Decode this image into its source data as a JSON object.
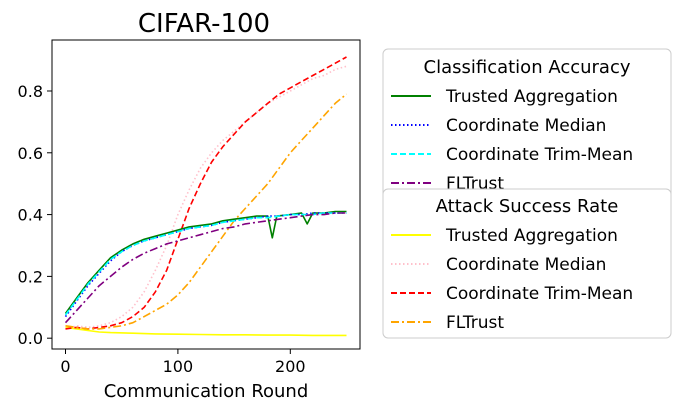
{
  "chart_data": {
    "type": "line",
    "title": "CIFAR-100",
    "xlabel": "Communication Round",
    "ylabel": "",
    "xlim": [
      -12,
      262
    ],
    "ylim": [
      -0.035,
      0.965
    ],
    "xticks": [
      0,
      100,
      200
    ],
    "xtick_labels": [
      "0",
      "100",
      "200"
    ],
    "yticks": [
      0.0,
      0.2,
      0.4,
      0.6,
      0.8
    ],
    "ytick_labels": [
      "0.0",
      "0.2",
      "0.4",
      "0.6",
      "0.8"
    ],
    "grid": false,
    "legend_groups": [
      {
        "title": "Classification Accuracy",
        "placement": "right-upper",
        "entries": [
          "Trusted Aggregation",
          "Coordinate Median",
          "Coordinate Trim-Mean",
          "FLTrust"
        ]
      },
      {
        "title": "Attack Success Rate",
        "placement": "right-lower",
        "entries": [
          "Trusted Aggregation",
          "Coordinate Median",
          "Coordinate Trim-Mean",
          "FLTrust"
        ]
      }
    ],
    "series": [
      {
        "name": "Trusted Aggregation",
        "group": "Classification Accuracy",
        "color": "#008000",
        "dash": "solid",
        "points": [
          [
            0,
            0.08
          ],
          [
            10,
            0.13
          ],
          [
            20,
            0.18
          ],
          [
            30,
            0.22
          ],
          [
            40,
            0.26
          ],
          [
            50,
            0.285
          ],
          [
            60,
            0.305
          ],
          [
            70,
            0.32
          ],
          [
            80,
            0.33
          ],
          [
            90,
            0.34
          ],
          [
            100,
            0.35
          ],
          [
            110,
            0.36
          ],
          [
            120,
            0.365
          ],
          [
            130,
            0.37
          ],
          [
            140,
            0.38
          ],
          [
            150,
            0.385
          ],
          [
            160,
            0.39
          ],
          [
            170,
            0.395
          ],
          [
            180,
            0.395
          ],
          [
            184,
            0.325
          ],
          [
            188,
            0.395
          ],
          [
            200,
            0.4
          ],
          [
            210,
            0.405
          ],
          [
            215,
            0.37
          ],
          [
            220,
            0.405
          ],
          [
            230,
            0.405
          ],
          [
            240,
            0.41
          ],
          [
            250,
            0.41
          ]
        ]
      },
      {
        "name": "Coordinate Median",
        "group": "Classification Accuracy",
        "color": "#0000ff",
        "dash": "dotted",
        "points": [
          [
            0,
            0.07
          ],
          [
            10,
            0.12
          ],
          [
            20,
            0.17
          ],
          [
            30,
            0.21
          ],
          [
            40,
            0.25
          ],
          [
            50,
            0.28
          ],
          [
            60,
            0.3
          ],
          [
            70,
            0.315
          ],
          [
            80,
            0.325
          ],
          [
            90,
            0.335
          ],
          [
            100,
            0.345
          ],
          [
            110,
            0.355
          ],
          [
            120,
            0.36
          ],
          [
            130,
            0.365
          ],
          [
            140,
            0.375
          ],
          [
            150,
            0.38
          ],
          [
            160,
            0.385
          ],
          [
            170,
            0.39
          ],
          [
            180,
            0.395
          ],
          [
            190,
            0.395
          ],
          [
            200,
            0.4
          ],
          [
            210,
            0.4
          ],
          [
            220,
            0.405
          ],
          [
            230,
            0.405
          ],
          [
            240,
            0.405
          ],
          [
            250,
            0.405
          ]
        ]
      },
      {
        "name": "Coordinate Trim-Mean",
        "group": "Classification Accuracy",
        "color": "#00ffff",
        "dash": "dashed",
        "points": [
          [
            0,
            0.075
          ],
          [
            10,
            0.125
          ],
          [
            20,
            0.175
          ],
          [
            30,
            0.215
          ],
          [
            40,
            0.255
          ],
          [
            50,
            0.28
          ],
          [
            60,
            0.3
          ],
          [
            70,
            0.315
          ],
          [
            80,
            0.325
          ],
          [
            90,
            0.335
          ],
          [
            100,
            0.345
          ],
          [
            110,
            0.355
          ],
          [
            120,
            0.36
          ],
          [
            130,
            0.365
          ],
          [
            140,
            0.375
          ],
          [
            150,
            0.38
          ],
          [
            160,
            0.385
          ],
          [
            170,
            0.39
          ],
          [
            180,
            0.39
          ],
          [
            190,
            0.395
          ],
          [
            200,
            0.4
          ],
          [
            210,
            0.4
          ],
          [
            220,
            0.4
          ],
          [
            230,
            0.405
          ],
          [
            240,
            0.405
          ],
          [
            250,
            0.405
          ]
        ]
      },
      {
        "name": "FLTrust",
        "group": "Classification Accuracy",
        "color": "#800080",
        "dash": "dashdot",
        "points": [
          [
            0,
            0.05
          ],
          [
            10,
            0.09
          ],
          [
            20,
            0.13
          ],
          [
            30,
            0.17
          ],
          [
            40,
            0.2
          ],
          [
            50,
            0.23
          ],
          [
            60,
            0.255
          ],
          [
            70,
            0.275
          ],
          [
            80,
            0.29
          ],
          [
            90,
            0.305
          ],
          [
            100,
            0.315
          ],
          [
            110,
            0.325
          ],
          [
            120,
            0.335
          ],
          [
            130,
            0.345
          ],
          [
            140,
            0.355
          ],
          [
            150,
            0.36
          ],
          [
            160,
            0.37
          ],
          [
            170,
            0.375
          ],
          [
            180,
            0.38
          ],
          [
            190,
            0.385
          ],
          [
            200,
            0.39
          ],
          [
            210,
            0.395
          ],
          [
            220,
            0.4
          ],
          [
            230,
            0.4
          ],
          [
            240,
            0.405
          ],
          [
            250,
            0.405
          ]
        ]
      },
      {
        "name": "Trusted Aggregation",
        "group": "Attack Success Rate",
        "color": "#ffff00",
        "dash": "solid",
        "points": [
          [
            0,
            0.035
          ],
          [
            10,
            0.03
          ],
          [
            20,
            0.025
          ],
          [
            30,
            0.02
          ],
          [
            40,
            0.018
          ],
          [
            60,
            0.016
          ],
          [
            80,
            0.014
          ],
          [
            100,
            0.013
          ],
          [
            120,
            0.012
          ],
          [
            140,
            0.011
          ],
          [
            160,
            0.011
          ],
          [
            180,
            0.01
          ],
          [
            200,
            0.01
          ],
          [
            220,
            0.009
          ],
          [
            250,
            0.009
          ]
        ]
      },
      {
        "name": "Coordinate Median",
        "group": "Attack Success Rate",
        "color": "#ffc0cb",
        "dash": "dotted",
        "points": [
          [
            0,
            0.03
          ],
          [
            10,
            0.04
          ],
          [
            20,
            0.035
          ],
          [
            30,
            0.04
          ],
          [
            40,
            0.05
          ],
          [
            50,
            0.07
          ],
          [
            60,
            0.1
          ],
          [
            70,
            0.15
          ],
          [
            80,
            0.22
          ],
          [
            90,
            0.3
          ],
          [
            100,
            0.4
          ],
          [
            110,
            0.48
          ],
          [
            120,
            0.55
          ],
          [
            130,
            0.6
          ],
          [
            140,
            0.64
          ],
          [
            150,
            0.67
          ],
          [
            160,
            0.7
          ],
          [
            170,
            0.73
          ],
          [
            180,
            0.76
          ],
          [
            190,
            0.78
          ],
          [
            200,
            0.8
          ],
          [
            210,
            0.82
          ],
          [
            220,
            0.84
          ],
          [
            230,
            0.85
          ],
          [
            240,
            0.87
          ],
          [
            250,
            0.88
          ]
        ]
      },
      {
        "name": "Coordinate Trim-Mean",
        "group": "Attack Success Rate",
        "color": "#ff0000",
        "dash": "dashed",
        "points": [
          [
            0,
            0.03
          ],
          [
            10,
            0.035
          ],
          [
            20,
            0.03
          ],
          [
            30,
            0.035
          ],
          [
            40,
            0.04
          ],
          [
            50,
            0.05
          ],
          [
            60,
            0.07
          ],
          [
            70,
            0.1
          ],
          [
            80,
            0.15
          ],
          [
            90,
            0.22
          ],
          [
            100,
            0.32
          ],
          [
            110,
            0.42
          ],
          [
            120,
            0.5
          ],
          [
            130,
            0.57
          ],
          [
            140,
            0.62
          ],
          [
            150,
            0.66
          ],
          [
            160,
            0.7
          ],
          [
            170,
            0.73
          ],
          [
            180,
            0.76
          ],
          [
            190,
            0.79
          ],
          [
            200,
            0.81
          ],
          [
            210,
            0.83
          ],
          [
            220,
            0.85
          ],
          [
            230,
            0.87
          ],
          [
            240,
            0.89
          ],
          [
            250,
            0.91
          ]
        ]
      },
      {
        "name": "FLTrust",
        "group": "Attack Success Rate",
        "color": "#ffa500",
        "dash": "dashdot",
        "points": [
          [
            0,
            0.04
          ],
          [
            10,
            0.035
          ],
          [
            20,
            0.03
          ],
          [
            30,
            0.03
          ],
          [
            40,
            0.035
          ],
          [
            50,
            0.04
          ],
          [
            60,
            0.05
          ],
          [
            70,
            0.07
          ],
          [
            80,
            0.09
          ],
          [
            90,
            0.11
          ],
          [
            100,
            0.14
          ],
          [
            110,
            0.18
          ],
          [
            120,
            0.23
          ],
          [
            130,
            0.28
          ],
          [
            140,
            0.33
          ],
          [
            150,
            0.38
          ],
          [
            160,
            0.42
          ],
          [
            170,
            0.46
          ],
          [
            180,
            0.5
          ],
          [
            190,
            0.55
          ],
          [
            200,
            0.6
          ],
          [
            210,
            0.64
          ],
          [
            220,
            0.68
          ],
          [
            230,
            0.72
          ],
          [
            240,
            0.76
          ],
          [
            250,
            0.79
          ]
        ]
      }
    ]
  }
}
